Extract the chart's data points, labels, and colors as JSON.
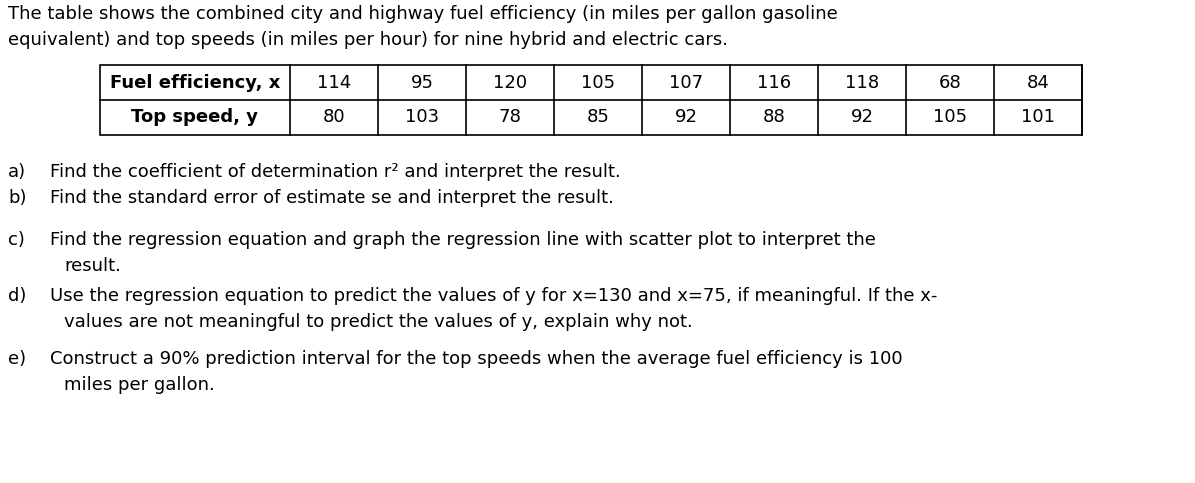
{
  "intro_line1": "The table shows the combined city and highway fuel efficiency (in miles per gallon gasoline",
  "intro_line2": "equivalent) and top speeds (in miles per hour) for nine hybrid and electric cars.",
  "row1_label": "Fuel efficiency, x",
  "row2_label": "Top speed, y",
  "row1_values": [
    "114",
    "95",
    "120",
    "105",
    "107",
    "116",
    "118",
    "68",
    "84"
  ],
  "row2_values": [
    "80",
    "103",
    "78",
    "85",
    "92",
    "88",
    "92",
    "105",
    "101"
  ],
  "item_labels": [
    "a)",
    "b)",
    "c)",
    "d)",
    "e)"
  ],
  "item_lines": [
    [
      "Find the coefficient of determination r² and interpret the result."
    ],
    [
      "Find the standard error of estimate se and interpret the result."
    ],
    [
      "Find the regression equation and graph the regression line with scatter plot to interpret the",
      "result."
    ],
    [
      "Use the regression equation to predict the values of y for x=130 and x=75, if meaningful. If the x-",
      "values are not meaningful to predict the values of y, explain why not."
    ],
    [
      "Construct a 90% prediction interval for the top speeds when the average fuel efficiency is 100",
      "miles per gallon."
    ]
  ],
  "bg_color": "#ffffff",
  "text_color": "#000000",
  "font_size": 13.0,
  "table_font_size": 13.0
}
